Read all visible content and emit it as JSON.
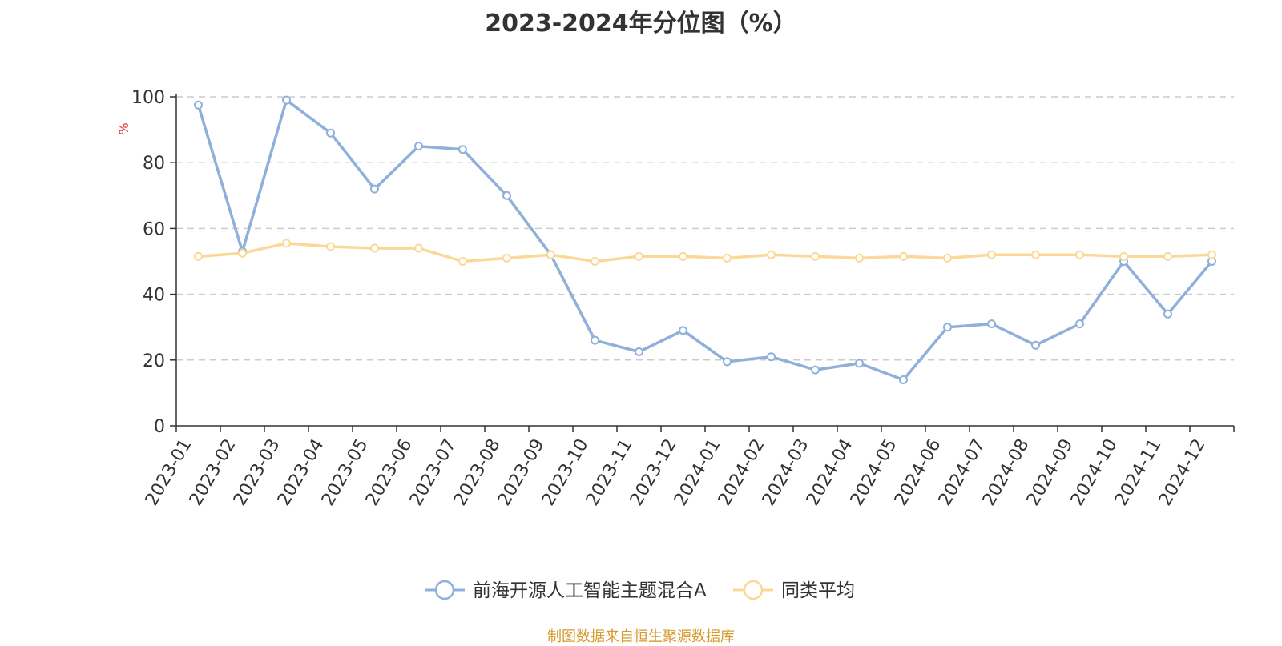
{
  "chart_data": {
    "type": "line",
    "title": "2023-2024年分位图（%）",
    "ylabel": "%",
    "xlabel": "",
    "ylim": [
      0,
      100
    ],
    "yticks": [
      0,
      20,
      40,
      60,
      80,
      100
    ],
    "grid": true,
    "legend_position": "bottom",
    "categories": [
      "2023-01",
      "2023-02",
      "2023-03",
      "2023-04",
      "2023-05",
      "2023-06",
      "2023-07",
      "2023-08",
      "2023-09",
      "2023-10",
      "2023-11",
      "2023-12",
      "2024-01",
      "2024-02",
      "2024-03",
      "2024-04",
      "2024-05",
      "2024-06",
      "2024-07",
      "2024-08",
      "2024-09",
      "2024-10",
      "2024-11",
      "2024-12"
    ],
    "series": [
      {
        "name": "前海开源人工智能主题混合A",
        "color": "#8eb0db",
        "values": [
          97.5,
          53,
          99,
          89,
          72,
          85,
          84,
          70,
          52,
          26,
          22.5,
          29,
          19.5,
          21,
          17,
          19,
          14,
          30,
          31,
          24.5,
          31,
          50,
          34,
          50
        ]
      },
      {
        "name": "同类平均",
        "color": "#fcd897",
        "values": [
          51.5,
          52.5,
          55.5,
          54.5,
          54,
          54,
          50,
          51,
          52,
          50,
          51.5,
          51.5,
          51,
          52,
          51.5,
          51,
          51.5,
          51,
          52,
          52,
          52,
          51.5,
          51.5,
          52
        ]
      }
    ]
  },
  "footer": "制图数据来自恒生聚源数据库"
}
